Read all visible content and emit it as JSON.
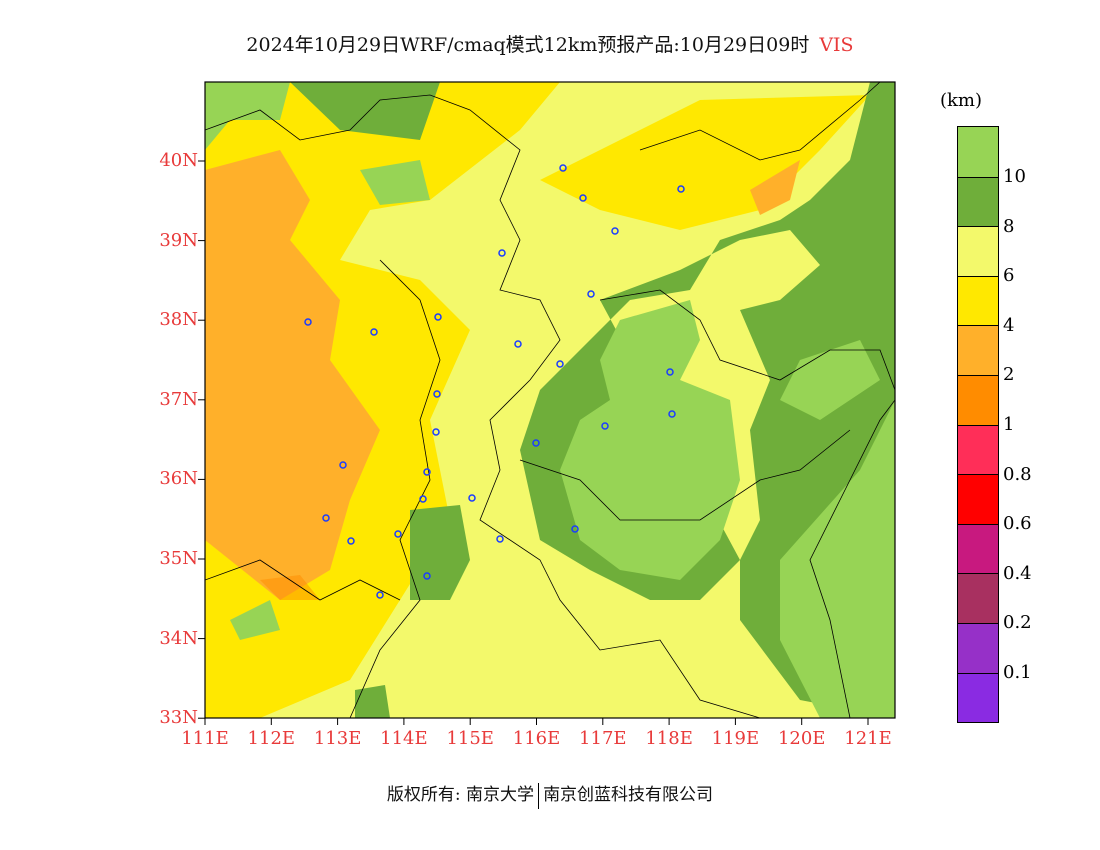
{
  "title": {
    "text": "2024年10月29日WRF/cmaq模式12km预报产品:10月29日09时",
    "variable": "VIS"
  },
  "lat_labels": [
    "40N",
    "39N",
    "38N",
    "37N",
    "36N",
    "35N",
    "34N",
    "33N"
  ],
  "lon_labels": [
    "111E",
    "112E",
    "113E",
    "114E",
    "115E",
    "116E",
    "117E",
    "118E",
    "119E",
    "120E",
    "121E"
  ],
  "colorbar": {
    "unit": "(km)",
    "colors": [
      "#97d455",
      "#6fae3a",
      "#f3f96b",
      "#ffe800",
      "#ffb02a",
      "#ff8c00",
      "#ff2e58",
      "#ff0000",
      "#c8197f",
      "#a83060",
      "#9630c8",
      "#8a2be2"
    ],
    "labels": [
      "10",
      "8",
      "6",
      "4",
      "2",
      "1",
      "0.8",
      "0.6",
      "0.4",
      "0.2",
      "0.1"
    ]
  },
  "footer": {
    "left": "版权所有: 南京大学",
    "right": "南京创蓝科技有限公司"
  }
}
